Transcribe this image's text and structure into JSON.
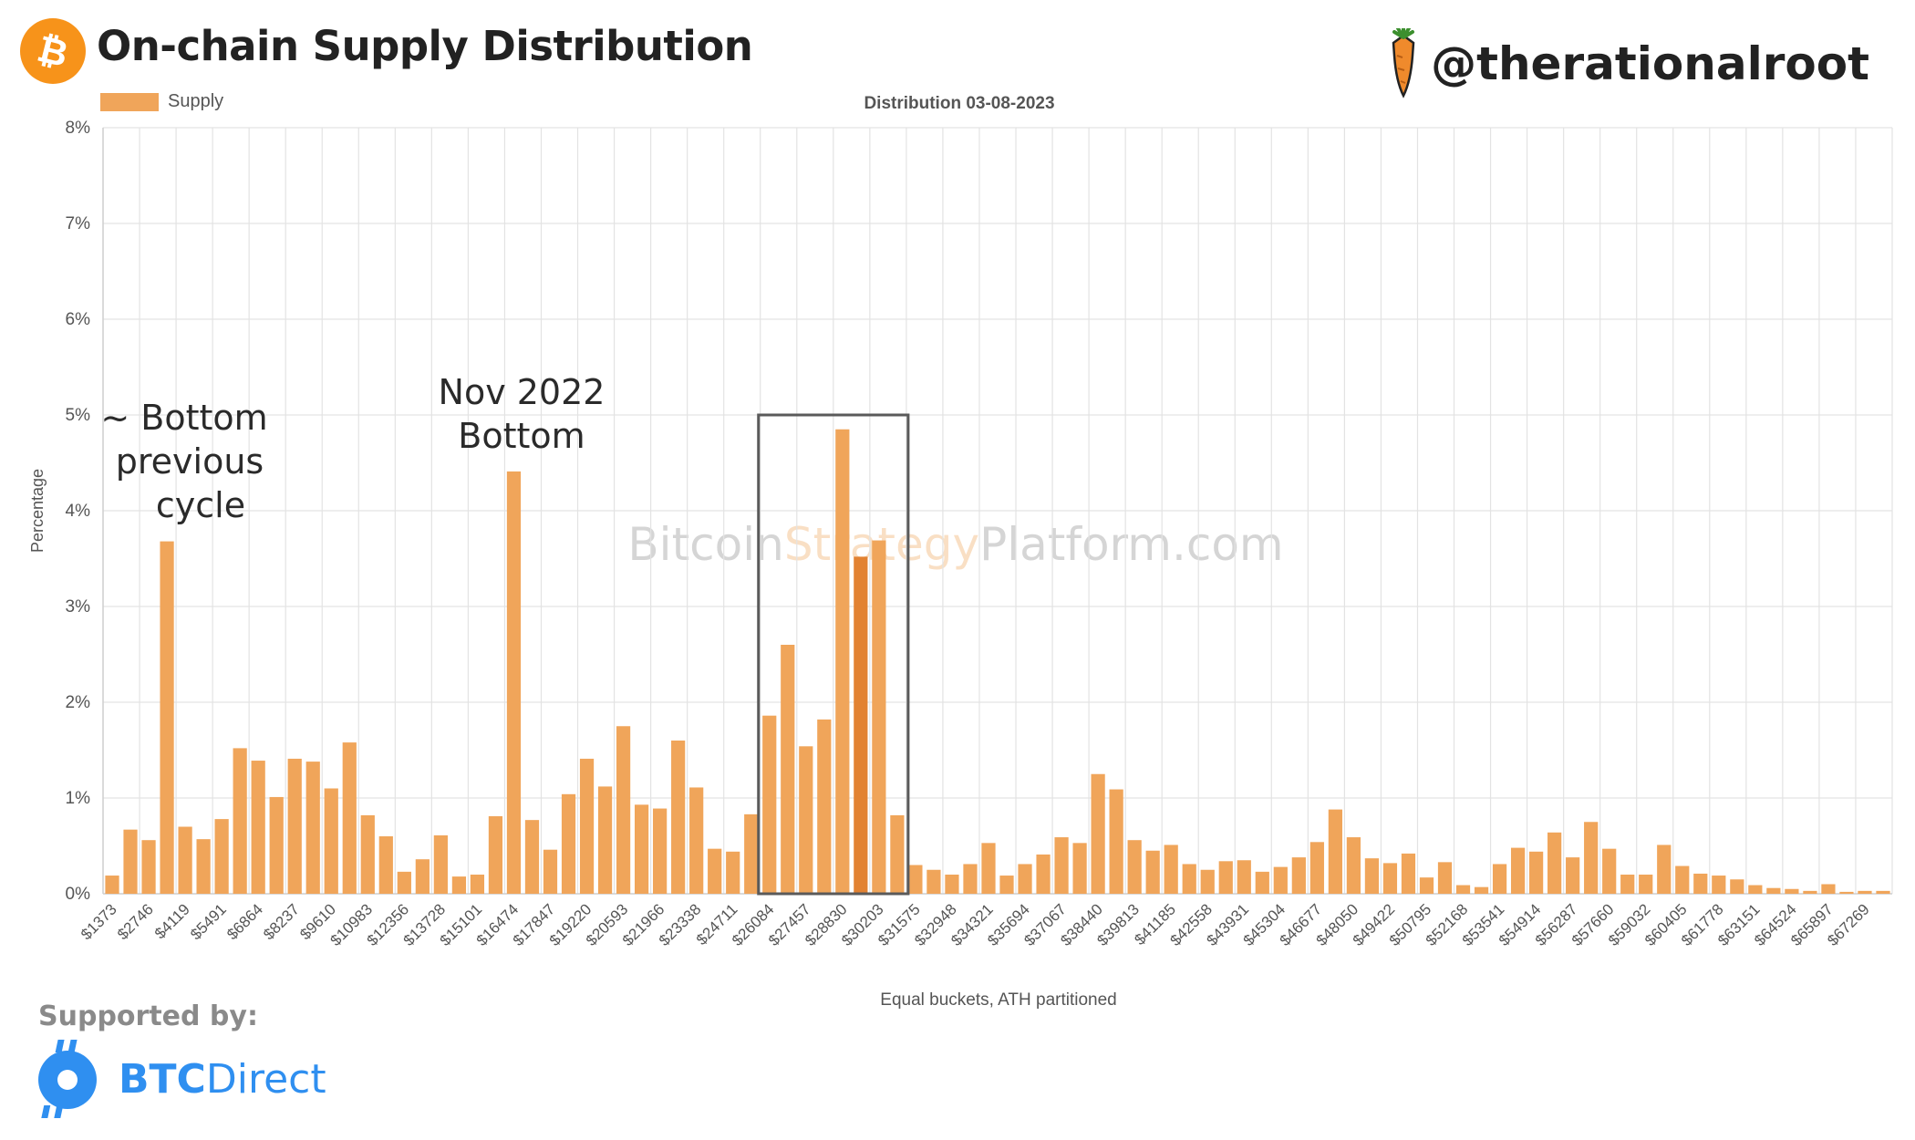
{
  "header": {
    "title": "On-chain Supply Distribution",
    "handle": "@therationalroot"
  },
  "footer": {
    "supported_by": "Supported by:",
    "sponsor_brand": "BTC",
    "sponsor_name": "Direct"
  },
  "colors": {
    "bar": "#f0a55a",
    "bar_highlight": "#e28232",
    "logo_orange": "#f7931a",
    "sponsor_blue": "#2f8ff0",
    "grid": "#e3e3e3"
  },
  "chart_data": {
    "type": "bar",
    "title": "Distribution 03-08-2023",
    "xlabel": "Equal buckets, ATH partitioned",
    "ylabel": "Percentage",
    "watermark": {
      "part1": "Bitcoin",
      "part2": "Strategy",
      "part3": "Platform.com"
    },
    "ylim": [
      0,
      8
    ],
    "ytick_labels": [
      "0%",
      "1%",
      "2%",
      "3%",
      "4%",
      "5%",
      "6%",
      "7%",
      "8%"
    ],
    "legend": {
      "label": "Supply",
      "position": "top-left"
    },
    "grid": true,
    "series": [
      {
        "name": "Supply",
        "values": [
          0.19,
          0.67,
          0.56,
          3.68,
          0.7,
          0.57,
          0.78,
          1.52,
          1.39,
          1.01,
          1.41,
          1.38,
          1.1,
          1.58,
          0.82,
          0.6,
          0.23,
          0.36,
          0.61,
          0.18,
          0.2,
          0.81,
          4.41,
          0.77,
          0.46,
          1.04,
          1.41,
          1.12,
          1.75,
          0.93,
          0.89,
          1.6,
          1.11,
          0.47,
          0.44,
          0.83,
          1.86,
          2.6,
          1.54,
          1.82,
          4.85,
          3.52,
          3.69,
          0.82,
          0.3,
          0.25,
          0.2,
          0.31,
          0.53,
          0.19,
          0.31,
          0.41,
          0.59,
          0.53,
          1.25,
          1.09,
          0.56,
          0.45,
          0.51,
          0.31,
          0.25,
          0.34,
          0.35,
          0.23,
          0.28,
          0.38,
          0.54,
          0.88,
          0.59,
          0.37,
          0.32,
          0.42,
          0.17,
          0.33,
          0.09,
          0.07,
          0.31,
          0.48,
          0.44,
          0.64,
          0.38,
          0.75,
          0.47,
          0.2,
          0.2,
          0.51,
          0.29,
          0.21,
          0.19,
          0.15,
          0.09,
          0.06,
          0.05,
          0.03,
          0.1,
          0.02,
          0.03,
          0.03
        ]
      }
    ],
    "highlight_indices": [
      41
    ],
    "categories_labeled": [
      "$1373",
      "$2746",
      "$4119",
      "$5491",
      "$6864",
      "$8237",
      "$9610",
      "$10983",
      "$12356",
      "$13728",
      "$15101",
      "$16474",
      "$17847",
      "$19220",
      "$20593",
      "$21966",
      "$23338",
      "$24711",
      "$26084",
      "$27457",
      "$28830",
      "$30203",
      "$31575",
      "$32948",
      "$34321",
      "$35694",
      "$37067",
      "$38440",
      "$39813",
      "$41185",
      "$42558",
      "$43931",
      "$45304",
      "$46677",
      "$48050",
      "$49422",
      "$50795",
      "$52168",
      "$53541",
      "$54914",
      "$56287",
      "$57660",
      "$59032",
      "$60405",
      "$61778",
      "$63151",
      "$64524",
      "$65897",
      "$67269"
    ],
    "annotations": [
      {
        "lines": [
          "~ Bottom",
          "previous",
          "cycle"
        ],
        "target_index": 3
      },
      {
        "lines": [
          "Nov 2022",
          "Bottom"
        ],
        "target_index": 22
      }
    ],
    "highlight_box": {
      "from_index": 36,
      "to_index": 43,
      "y_top": 5
    }
  }
}
